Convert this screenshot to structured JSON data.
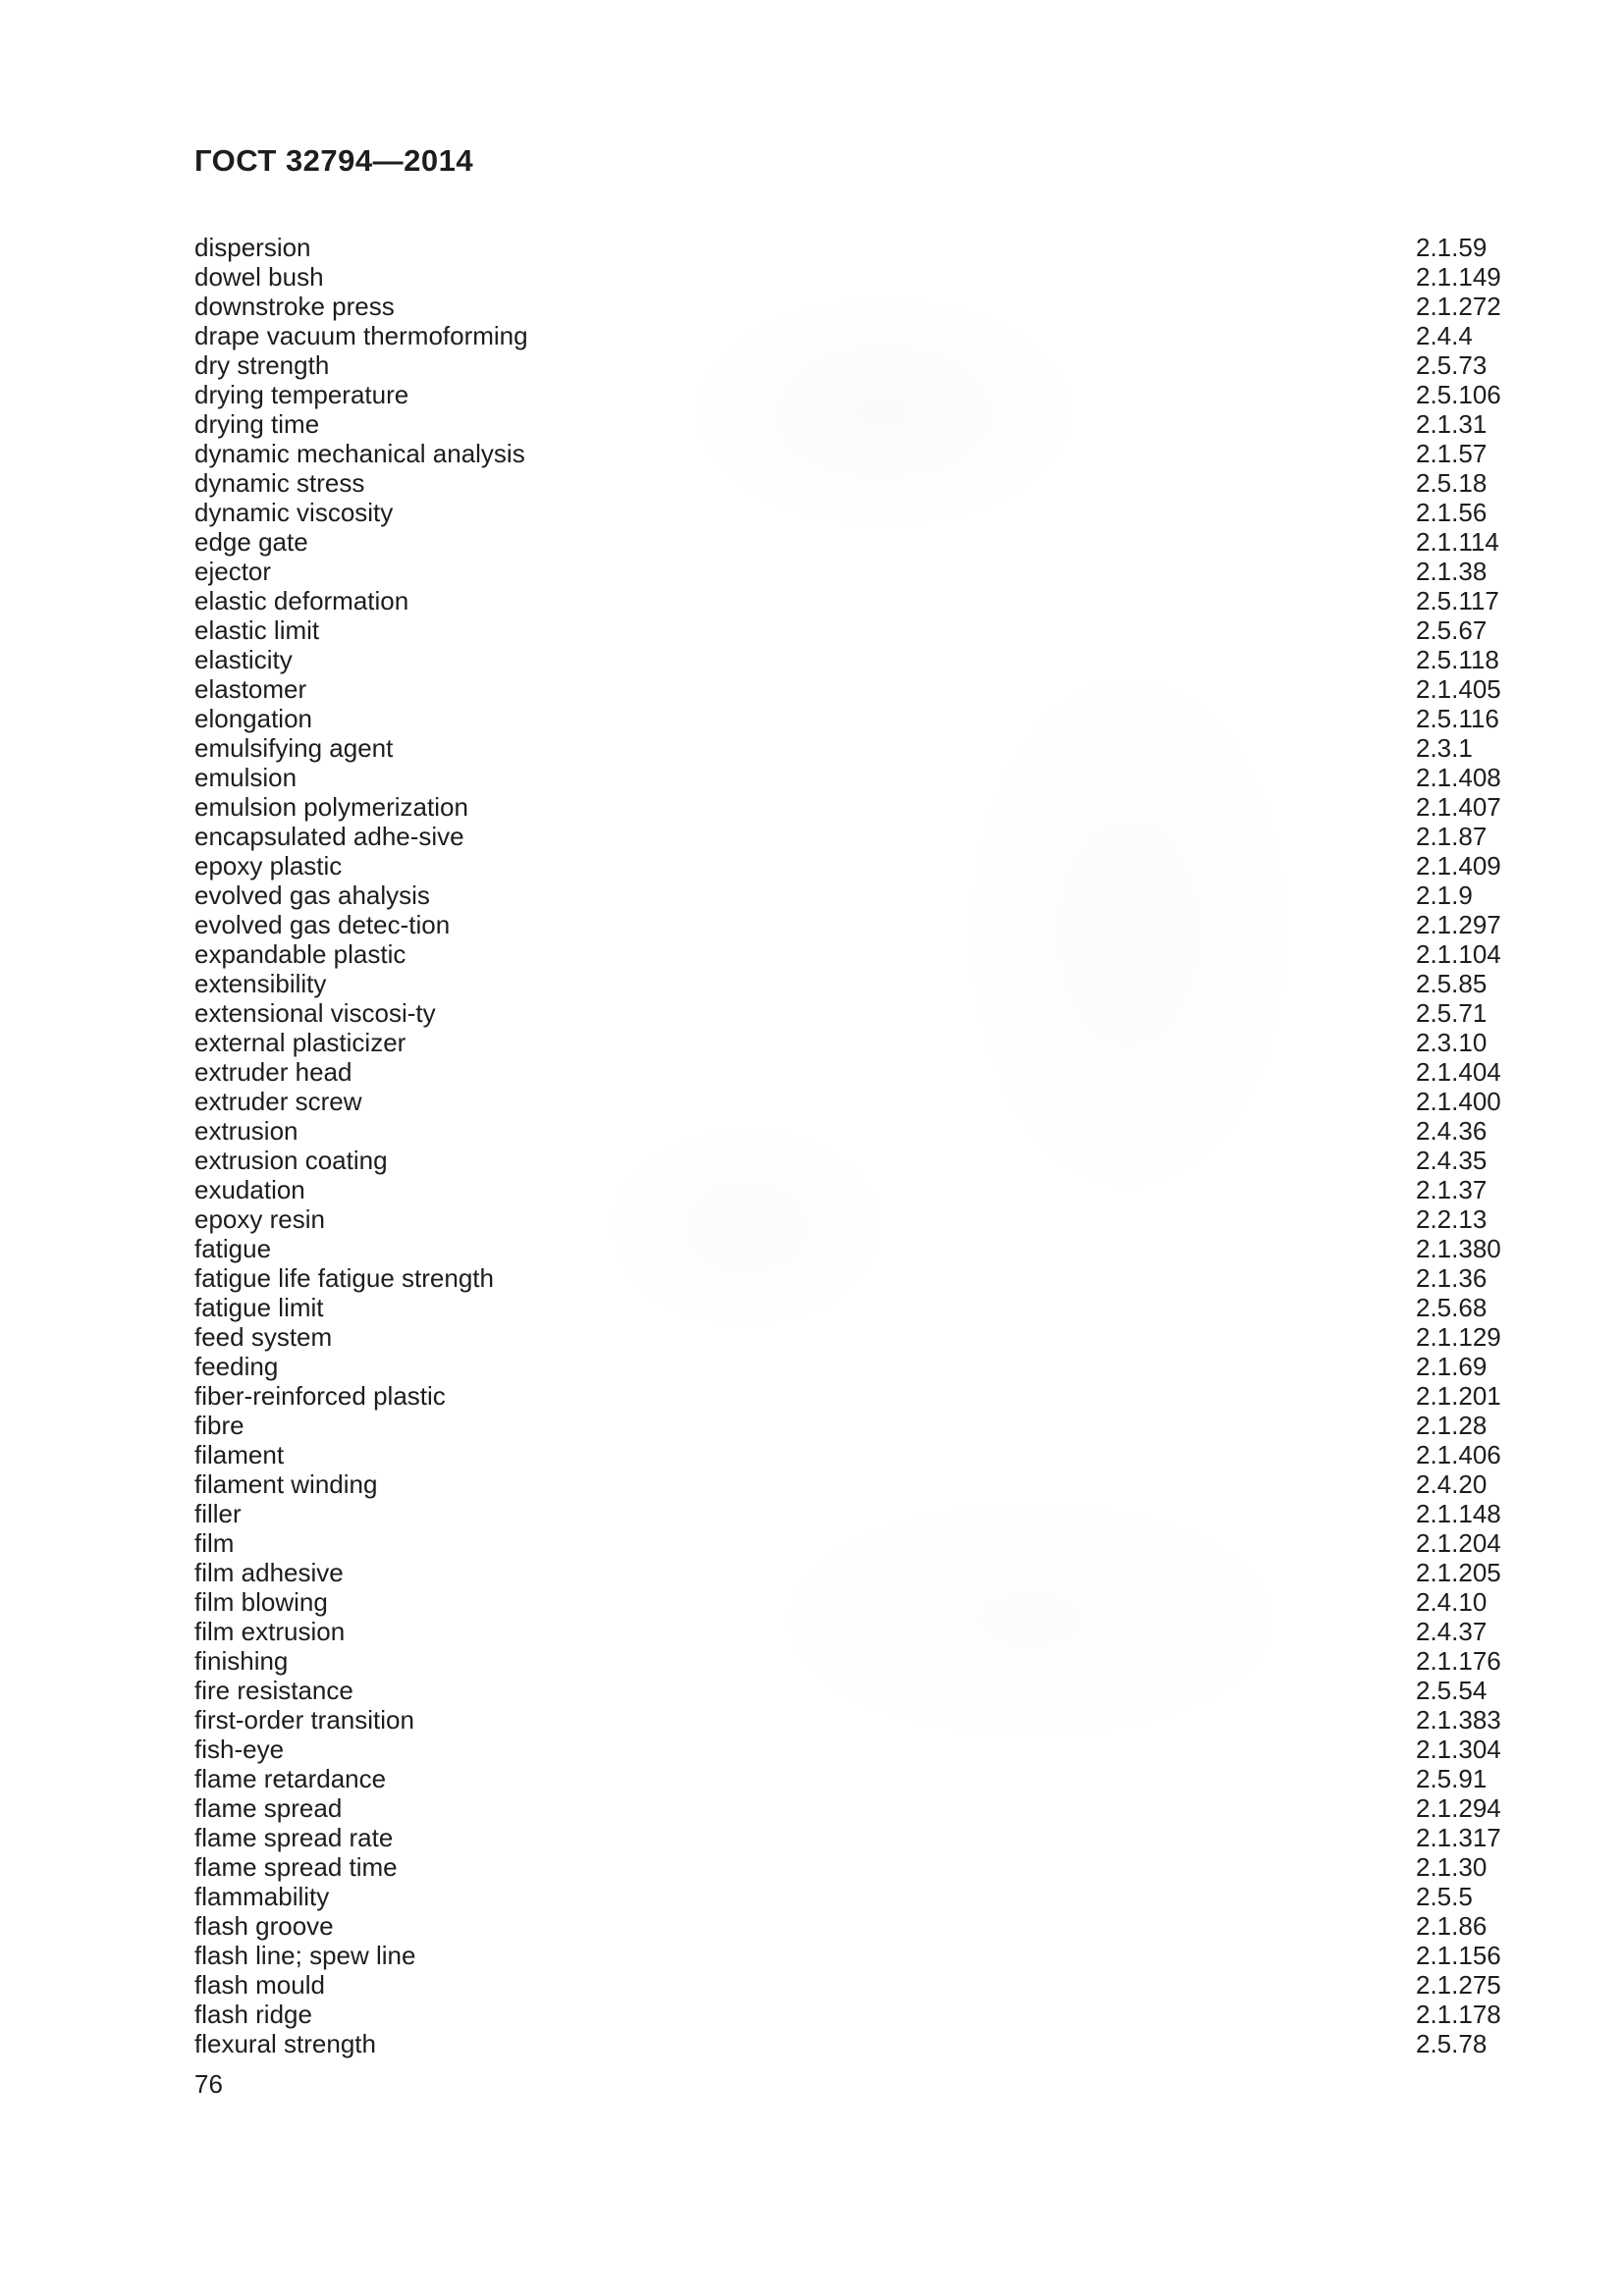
{
  "header": {
    "title": "ГОСТ 32794—2014"
  },
  "index": {
    "entries": [
      {
        "term": "dispersion",
        "ref": "2.1.59"
      },
      {
        "term": "dowel bush",
        "ref": "2.1.149"
      },
      {
        "term": "downstroke press",
        "ref": "2.1.272"
      },
      {
        "term": "drape vacuum thermoforming",
        "ref": "2.4.4"
      },
      {
        "term": "dry strength",
        "ref": "2.5.73"
      },
      {
        "term": "drying temperature",
        "ref": "2.5.106"
      },
      {
        "term": "drying time",
        "ref": "2.1.31"
      },
      {
        "term": "dynamic mechanical analysis",
        "ref": "2.1.57"
      },
      {
        "term": "dynamic stress",
        "ref": "2.5.18"
      },
      {
        "term": "dynamic viscosity",
        "ref": "2.1.56"
      },
      {
        "term": "edge gate",
        "ref": "2.1.114"
      },
      {
        "term": "ejector",
        "ref": "2.1.38"
      },
      {
        "term": "elastic deformation",
        "ref": "2.5.117"
      },
      {
        "term": "elastic limit",
        "ref": "2.5.67"
      },
      {
        "term": "elasticity",
        "ref": "2.5.118"
      },
      {
        "term": "elastomer",
        "ref": "2.1.405"
      },
      {
        "term": "elongation",
        "ref": "2.5.116"
      },
      {
        "term": "emulsifying agent",
        "ref": "2.3.1"
      },
      {
        "term": "emulsion",
        "ref": "2.1.408"
      },
      {
        "term": "emulsion polymerization",
        "ref": "2.1.407"
      },
      {
        "term": "encapsulated adhe-sive",
        "ref": "2.1.87"
      },
      {
        "term": "epoxy plastic",
        "ref": "2.1.409"
      },
      {
        "term": "evolved gas ahalysis",
        "ref": "2.1.9"
      },
      {
        "term": "evolved gas detec-tion",
        "ref": "2.1.297"
      },
      {
        "term": "expandable plastic",
        "ref": "2.1.104"
      },
      {
        "term": "extensibility",
        "ref": "2.5.85"
      },
      {
        "term": "extensional viscosi-ty",
        "ref": "2.5.71"
      },
      {
        "term": "external plasticizer",
        "ref": "2.3.10"
      },
      {
        "term": "extruder head",
        "ref": "2.1.404"
      },
      {
        "term": "extruder screw",
        "ref": "2.1.400"
      },
      {
        "term": "extrusion",
        "ref": "2.4.36"
      },
      {
        "term": "extrusion coating",
        "ref": "2.4.35"
      },
      {
        "term": "exudation",
        "ref": "2.1.37"
      },
      {
        "term": "epoxy resin",
        "ref": "2.2.13"
      },
      {
        "term": "fatigue",
        "ref": "2.1.380"
      },
      {
        "term": "fatigue life fatigue strength",
        "ref": "2.1.36"
      },
      {
        "term": "fatigue limit",
        "ref": "2.5.68"
      },
      {
        "term": "feed system",
        "ref": "2.1.129"
      },
      {
        "term": "feeding",
        "ref": "2.1.69"
      },
      {
        "term": "fiber-reinforced plastic",
        "ref": "2.1.201"
      },
      {
        "term": "fibre",
        "ref": "2.1.28"
      },
      {
        "term": "filament",
        "ref": "2.1.406"
      },
      {
        "term": "filament winding",
        "ref": "2.4.20"
      },
      {
        "term": "filler",
        "ref": "2.1.148"
      },
      {
        "term": "film",
        "ref": "2.1.204"
      },
      {
        "term": "film adhesive",
        "ref": "2.1.205"
      },
      {
        "term": "film blowing",
        "ref": "2.4.10"
      },
      {
        "term": "film extrusion",
        "ref": "2.4.37"
      },
      {
        "term": "finishing",
        "ref": "2.1.176"
      },
      {
        "term": "fire resistance",
        "ref": "2.5.54"
      },
      {
        "term": "first-order transition",
        "ref": "2.1.383"
      },
      {
        "term": "fish-eye",
        "ref": "2.1.304"
      },
      {
        "term": "flame retardance",
        "ref": "2.5.91"
      },
      {
        "term": "flame spread",
        "ref": "2.1.294"
      },
      {
        "term": "flame spread rate",
        "ref": "2.1.317"
      },
      {
        "term": "flame spread time",
        "ref": "2.1.30"
      },
      {
        "term": "flammability",
        "ref": "2.5.5"
      },
      {
        "term": "flash groove",
        "ref": "2.1.86"
      },
      {
        "term": "flash line; spew line",
        "ref": "2.1.156"
      },
      {
        "term": "flash mould",
        "ref": "2.1.275"
      },
      {
        "term": "flash ridge",
        "ref": "2.1.178"
      },
      {
        "term": "flexural strength",
        "ref": "2.5.78"
      }
    ]
  },
  "footer": {
    "page_number": "76"
  }
}
